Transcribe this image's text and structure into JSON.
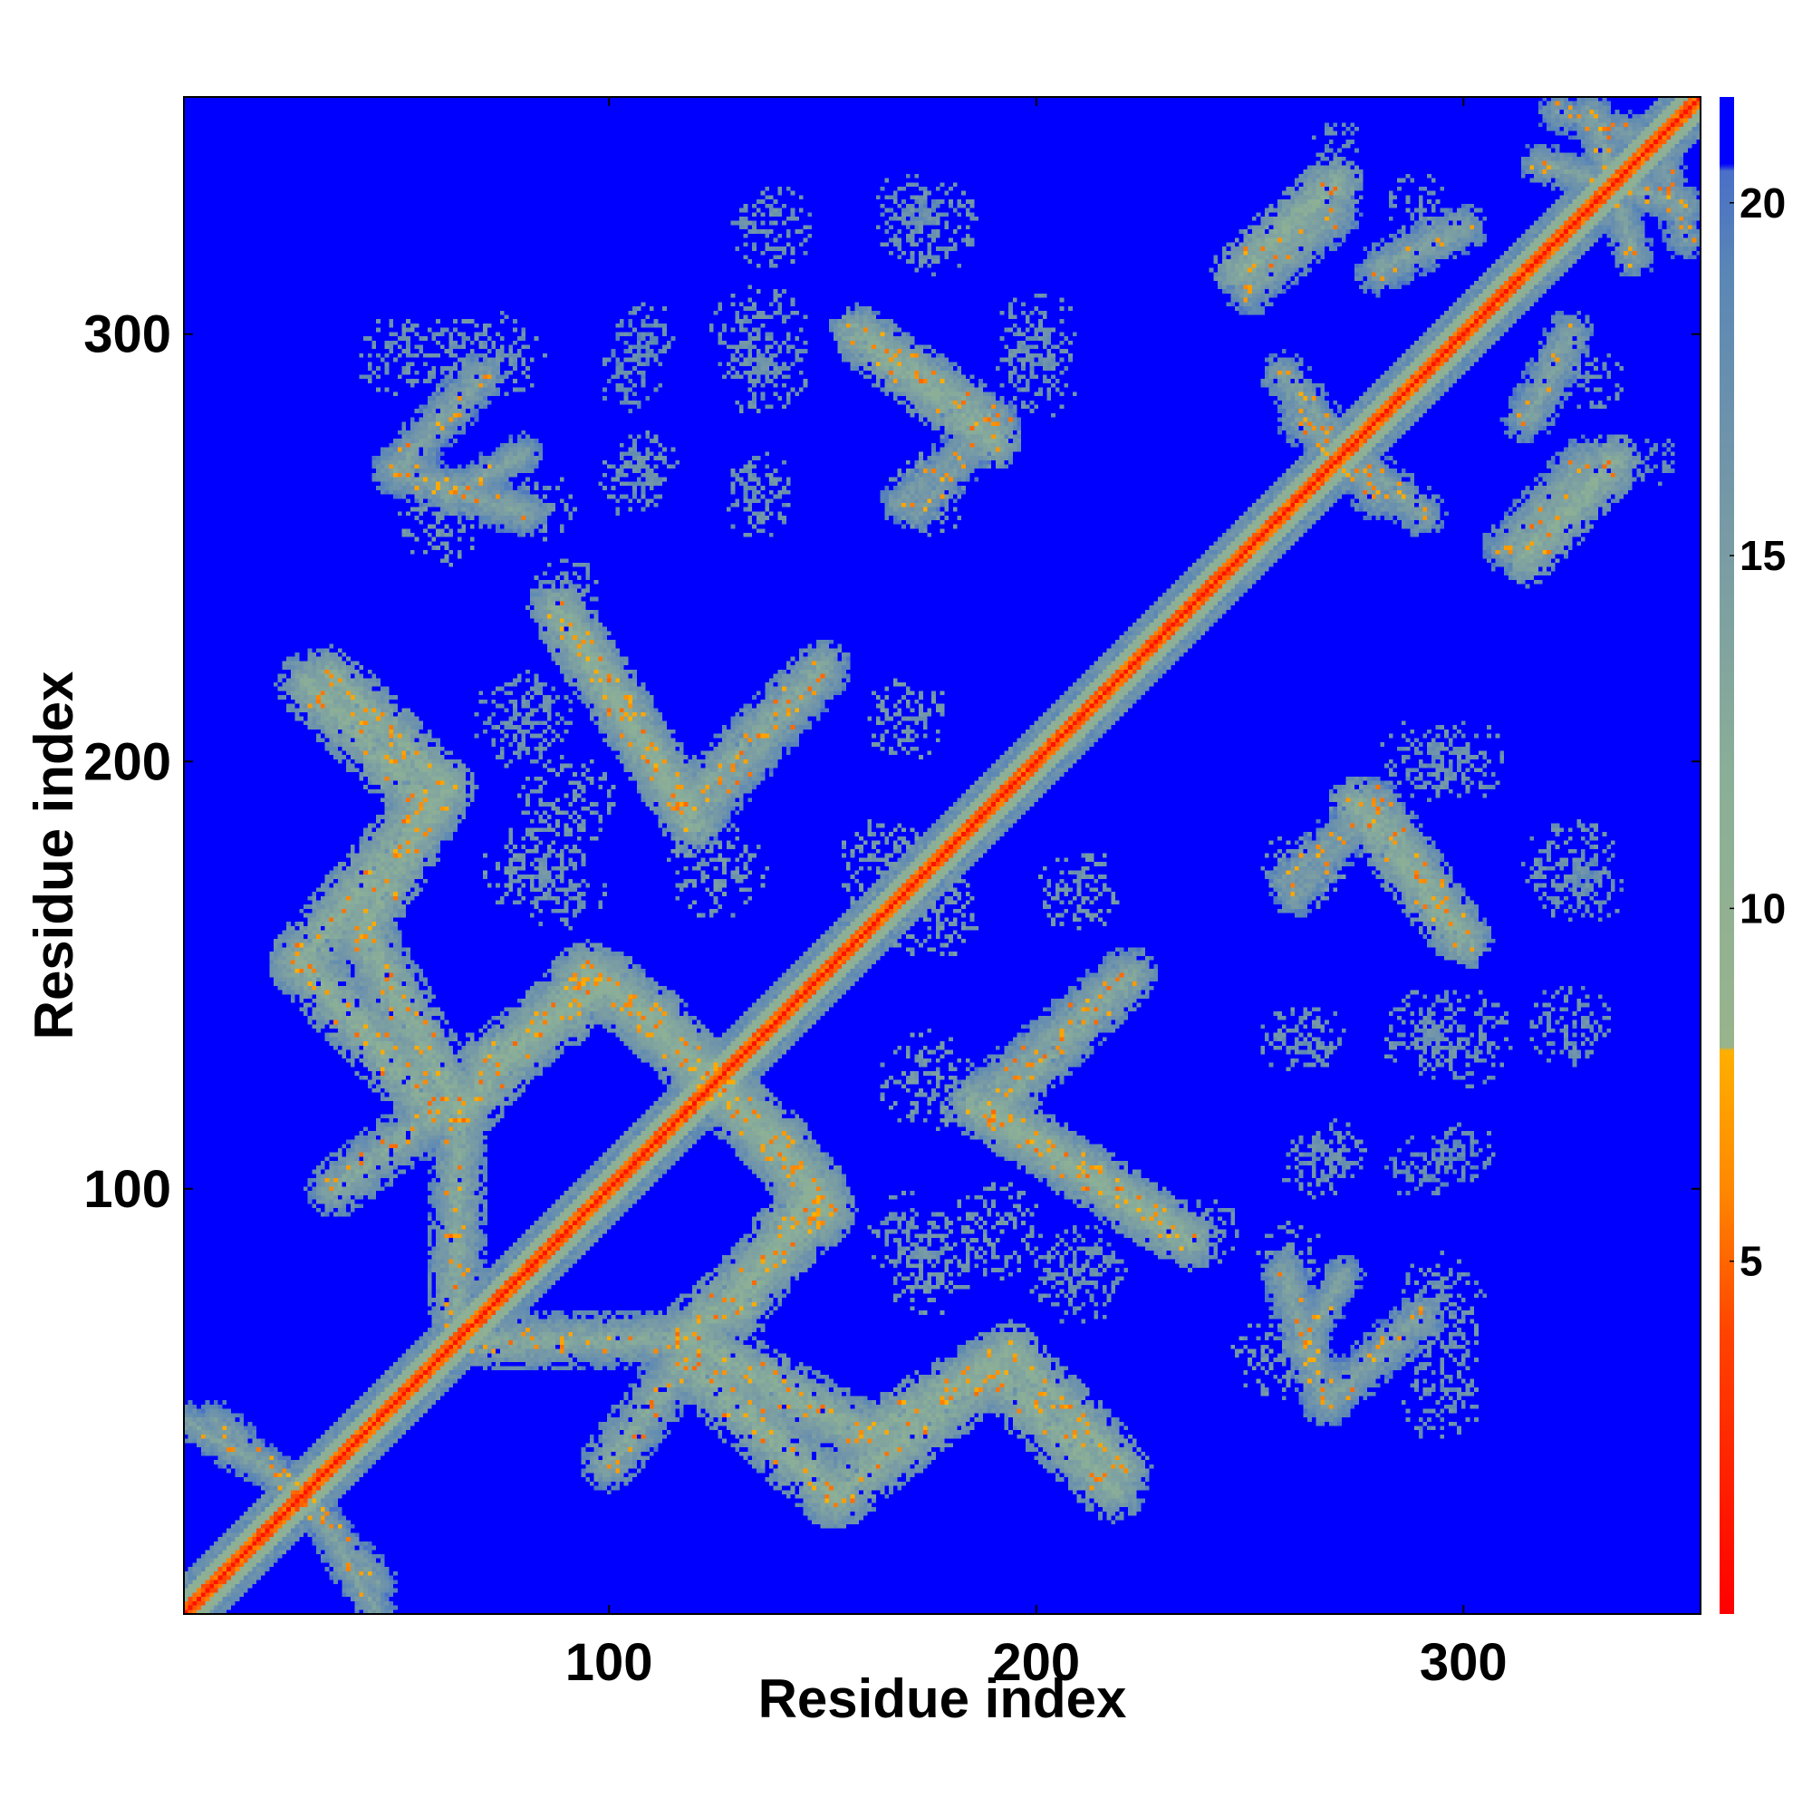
{
  "chart_data": {
    "type": "heatmap",
    "title": "",
    "xlabel": "Residue index",
    "ylabel": "Residue index",
    "xlim": [
      1,
      355
    ],
    "ylim": [
      1,
      355
    ],
    "x_ticks": [
      100,
      200,
      300
    ],
    "y_ticks": [
      100,
      200,
      300
    ],
    "grid": false,
    "colorbar": {
      "placement": "right",
      "range": [
        0,
        21.5
      ],
      "ticks": [
        5,
        10,
        15,
        20
      ],
      "stops": [
        {
          "value": 0,
          "color": "#ff0000"
        },
        {
          "value": 4,
          "color": "#ff4400"
        },
        {
          "value": 6,
          "color": "#ff8800"
        },
        {
          "value": 8,
          "color": "#ffb000"
        },
        {
          "value": 8.01,
          "color": "#98b48c"
        },
        {
          "value": 12,
          "color": "#8aae98"
        },
        {
          "value": 16,
          "color": "#7497a8"
        },
        {
          "value": 19,
          "color": "#5b87b5"
        },
        {
          "value": 20.5,
          "color": "#4a6fc8"
        },
        {
          "value": 20.51,
          "color": "#0000ff"
        },
        {
          "value": 21.5,
          "color": "#0000ff"
        }
      ]
    },
    "background_value": 21.5,
    "diagonal": {
      "core_value": 1,
      "halo_values": [
        4,
        10,
        16
      ],
      "halo_widths": [
        2,
        5,
        9
      ]
    },
    "contact_bands": [
      {
        "from": [
          30,
          218
        ],
        "to": [
          58,
          190
        ],
        "width": 8,
        "value": 12
      },
      {
        "from": [
          58,
          190
        ],
        "to": [
          28,
          153
        ],
        "width": 8,
        "value": 12
      },
      {
        "from": [
          28,
          153
        ],
        "to": [
          60,
          118
        ],
        "width": 8,
        "value": 12
      },
      {
        "from": [
          60,
          118
        ],
        "to": [
          36,
          100
        ],
        "width": 7,
        "value": 13
      },
      {
        "from": [
          88,
          236
        ],
        "to": [
          118,
          190
        ],
        "width": 7,
        "value": 12
      },
      {
        "from": [
          118,
          190
        ],
        "to": [
          150,
          222
        ],
        "width": 7,
        "value": 13
      },
      {
        "from": [
          72,
          130
        ],
        "to": [
          100,
          148
        ],
        "width": 8,
        "value": 12
      },
      {
        "from": [
          100,
          148
        ],
        "to": [
          140,
          110
        ],
        "width": 8,
        "value": 12
      },
      {
        "from": [
          140,
          110
        ],
        "to": [
          150,
          95
        ],
        "width": 8,
        "value": 12
      },
      {
        "from": [
          150,
          95
        ],
        "to": [
          118,
          65
        ],
        "width": 8,
        "value": 12
      },
      {
        "from": [
          118,
          65
        ],
        "to": [
          70,
          64
        ],
        "width": 7,
        "value": 13
      },
      {
        "from": [
          118,
          65
        ],
        "to": [
          160,
          42
        ],
        "width": 8,
        "value": 12
      },
      {
        "from": [
          160,
          42
        ],
        "to": [
          194,
          62
        ],
        "width": 7,
        "value": 12
      },
      {
        "from": [
          194,
          62
        ],
        "to": [
          220,
          35
        ],
        "width": 7,
        "value": 12
      },
      {
        "from": [
          185,
          120
        ],
        "to": [
          232,
          90
        ],
        "width": 7,
        "value": 12
      },
      {
        "from": [
          185,
          120
        ],
        "to": [
          220,
          150
        ],
        "width": 6,
        "value": 14
      },
      {
        "from": [
          158,
          300
        ],
        "to": [
          190,
          275
        ],
        "width": 7,
        "value": 12
      },
      {
        "from": [
          168,
          260
        ],
        "to": [
          190,
          280
        ],
        "width": 5,
        "value": 15
      },
      {
        "from": [
          50,
          268
        ],
        "to": [
          70,
          290
        ],
        "width": 6,
        "value": 14
      },
      {
        "from": [
          50,
          268
        ],
        "to": [
          80,
          258
        ],
        "width": 6,
        "value": 14
      },
      {
        "from": [
          248,
          315
        ],
        "to": [
          270,
          335
        ],
        "width": 7,
        "value": 12
      },
      {
        "from": [
          280,
          315
        ],
        "to": [
          300,
          325
        ],
        "width": 6,
        "value": 14
      },
      {
        "from": [
          262,
          280
        ],
        "to": [
          290,
          258
        ],
        "width": 6,
        "value": 14
      },
      {
        "from": [
          310,
          250
        ],
        "to": [
          328,
          270
        ],
        "width": 6,
        "value": 14
      },
      {
        "from": [
          280,
          190
        ],
        "to": [
          300,
          160
        ],
        "width": 6,
        "value": 13
      },
      {
        "from": [
          258,
          172
        ],
        "to": [
          280,
          192
        ],
        "width": 5,
        "value": 15
      },
      {
        "from": [
          262,
          62
        ],
        "to": [
          272,
          80
        ],
        "width": 5,
        "value": 14
      },
      {
        "from": [
          2,
          45
        ],
        "to": [
          30,
          28
        ],
        "width": 5,
        "value": 14
      },
      {
        "from": [
          28,
          28
        ],
        "to": [
          46,
          8
        ],
        "width": 5,
        "value": 15
      },
      {
        "from": [
          318,
          340
        ],
        "to": [
          352,
          330
        ],
        "width": 5,
        "value": 14
      },
      {
        "from": [
          322,
          352
        ],
        "to": [
          345,
          345
        ],
        "width": 5,
        "value": 15
      }
    ],
    "sparse_patches": [
      {
        "center": [
          138,
          325
        ],
        "radius": 10,
        "value": 17
      },
      {
        "center": [
          135,
          300
        ],
        "radius": 12,
        "value": 17
      },
      {
        "center": [
          175,
          325
        ],
        "radius": 12,
        "value": 17
      },
      {
        "center": [
          200,
          300
        ],
        "radius": 10,
        "value": 17
      },
      {
        "center": [
          108,
          270
        ],
        "radius": 8,
        "value": 17
      },
      {
        "center": [
          135,
          265
        ],
        "radius": 8,
        "value": 17
      },
      {
        "center": [
          108,
          300
        ],
        "radius": 8,
        "value": 18
      },
      {
        "center": [
          50,
          295
        ],
        "radius": 10,
        "value": 17
      },
      {
        "center": [
          75,
          295
        ],
        "radius": 10,
        "value": 17
      },
      {
        "center": [
          263,
          175
        ],
        "radius": 10,
        "value": 16
      },
      {
        "center": [
          290,
          200
        ],
        "radius": 10,
        "value": 17
      },
      {
        "center": [
          260,
          135
        ],
        "radius": 8,
        "value": 17
      },
      {
        "center": [
          290,
          137
        ],
        "radius": 10,
        "value": 17
      },
      {
        "center": [
          265,
          105
        ],
        "radius": 8,
        "value": 17
      },
      {
        "center": [
          290,
          105
        ],
        "radius": 8,
        "value": 18
      },
      {
        "center": [
          295,
          65
        ],
        "radius": 10,
        "value": 17
      },
      {
        "center": [
          255,
          60
        ],
        "radius": 10,
        "value": 16
      },
      {
        "center": [
          210,
          80
        ],
        "radius": 12,
        "value": 17
      },
      {
        "center": [
          175,
          80
        ],
        "radius": 10,
        "value": 16
      },
      {
        "center": [
          125,
          175
        ],
        "radius": 12,
        "value": 16
      },
      {
        "center": [
          165,
          175
        ],
        "radius": 12,
        "value": 16
      },
      {
        "center": [
          210,
          170
        ],
        "radius": 10,
        "value": 16
      },
      {
        "center": [
          90,
          190
        ],
        "radius": 12,
        "value": 16
      },
      {
        "center": [
          90,
          170
        ],
        "radius": 10,
        "value": 17
      },
      {
        "center": [
          240,
          90
        ],
        "radius": 8,
        "value": 17
      },
      {
        "center": [
          260,
          85
        ],
        "radius": 8,
        "value": 17
      },
      {
        "center": [
          330,
          290
        ],
        "radius": 8,
        "value": 17
      },
      {
        "center": [
          270,
          345
        ],
        "radius": 6,
        "value": 18
      },
      {
        "center": [
          170,
          330
        ],
        "radius": 8,
        "value": 18
      }
    ]
  }
}
